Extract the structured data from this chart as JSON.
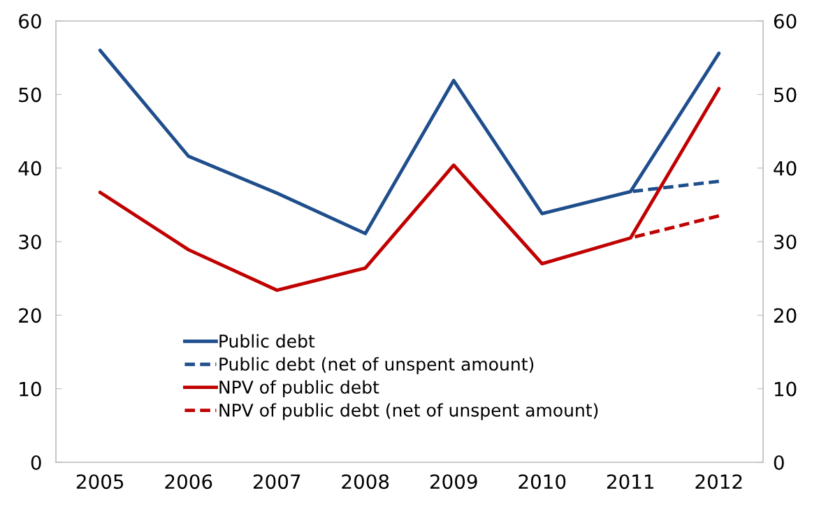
{
  "chart_data": {
    "type": "line",
    "categories": [
      "2005",
      "2006",
      "2007",
      "2008",
      "2009",
      "2010",
      "2011",
      "2012"
    ],
    "series": [
      {
        "name": "Public debt",
        "color": "#1f4e8c",
        "values": [
          56.0,
          41.6,
          36.6,
          31.1,
          51.9,
          33.8,
          36.8,
          55.6
        ],
        "line_style": "solid"
      },
      {
        "name": "Public debt (net of unspent amount)",
        "color": "#1f4e8c",
        "values": [
          null,
          null,
          null,
          null,
          null,
          null,
          36.8,
          38.2
        ],
        "line_style": "dashed"
      },
      {
        "name": "NPV of public debt",
        "color": "#c00000",
        "values": [
          36.7,
          28.9,
          23.4,
          26.4,
          40.4,
          27.0,
          30.5,
          50.8
        ],
        "line_style": "solid"
      },
      {
        "name": "NPV of public debt (net of unspent amount)",
        "color": "#c00000",
        "values": [
          null,
          null,
          null,
          null,
          null,
          null,
          30.5,
          33.5
        ],
        "line_style": "dashed"
      }
    ],
    "ylim": [
      0,
      60
    ],
    "yticks": [
      0,
      10,
      20,
      30,
      40,
      50,
      60
    ],
    "y2lim": [
      0,
      60
    ],
    "y2ticks": [
      0,
      10,
      20,
      30,
      40,
      50,
      60
    ],
    "grid": false,
    "legend": "bottom",
    "marker": "none"
  }
}
